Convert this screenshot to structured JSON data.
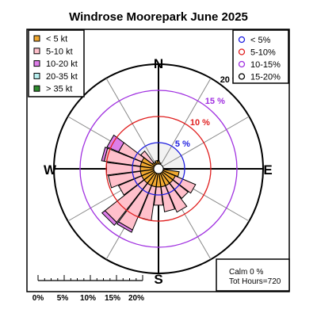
{
  "chart_data": {
    "type": "windrose",
    "title": "Windrose  Moorepark June 2025",
    "compass": {
      "north": "N",
      "east": "E",
      "south": "S",
      "west": "W"
    },
    "speed_bins": [
      {
        "label": "< 5  kt",
        "color": "#f0a830"
      },
      {
        "label": "5-10 kt",
        "color": "#ffc0cb"
      },
      {
        "label": "10-20 kt",
        "color": "#dd7ee8"
      },
      {
        "label": "20-35 kt",
        "color": "#b8f0f0"
      },
      {
        "label": "> 35 kt",
        "color": "#2e8b2e"
      }
    ],
    "rings": [
      {
        "value": 5,
        "label": "5 %",
        "color": "#1e1ee0"
      },
      {
        "value": 10,
        "label": "10 %",
        "color": "#e01e1e"
      },
      {
        "value": 15,
        "label": "15 %",
        "color": "#a030e0"
      },
      {
        "value": 20,
        "label": "20 %",
        "color": "#000000"
      }
    ],
    "ring_legend": [
      {
        "label": "< 5%",
        "color": "#1e1ee0"
      },
      {
        "label": "5-10%",
        "color": "#e01e1e"
      },
      {
        "label": "10-15%",
        "color": "#a030e0"
      },
      {
        "label": "15-20%",
        "color": "#000000"
      }
    ],
    "max_percent": 20,
    "sectors": [
      {
        "direction_deg": 0,
        "cumulative_percent": [
          1.5,
          1.5,
          1.5,
          1.5,
          1.5
        ]
      },
      {
        "direction_deg": 15,
        "cumulative_percent": [
          1.2,
          1.2,
          1.2,
          1.2,
          1.2
        ]
      },
      {
        "direction_deg": 30,
        "cumulative_percent": [
          0.8,
          0.8,
          0.8,
          0.8,
          0.8
        ]
      },
      {
        "direction_deg": 45,
        "cumulative_percent": [
          0.6,
          0.6,
          0.6,
          0.6,
          0.6
        ]
      },
      {
        "direction_deg": 60,
        "cumulative_percent": [
          0.6,
          0.6,
          0.6,
          0.6,
          0.6
        ]
      },
      {
        "direction_deg": 75,
        "cumulative_percent": [
          0.8,
          0.8,
          0.8,
          0.8,
          0.8
        ]
      },
      {
        "direction_deg": 90,
        "cumulative_percent": [
          1.0,
          1.0,
          1.0,
          1.0,
          1.0
        ]
      },
      {
        "direction_deg": 105,
        "cumulative_percent": [
          4.0,
          4.0,
          4.0,
          4.0,
          4.0
        ]
      },
      {
        "direction_deg": 120,
        "cumulative_percent": [
          3.5,
          7.7,
          7.7,
          7.7,
          7.7
        ]
      },
      {
        "direction_deg": 135,
        "cumulative_percent": [
          3.5,
          7.2,
          7.2,
          7.2,
          7.2
        ]
      },
      {
        "direction_deg": 150,
        "cumulative_percent": [
          3.5,
          9.0,
          9.0,
          9.0,
          9.0
        ]
      },
      {
        "direction_deg": 165,
        "cumulative_percent": [
          3.5,
          8.3,
          8.3,
          8.3,
          8.3
        ]
      },
      {
        "direction_deg": 180,
        "cumulative_percent": [
          3.5,
          7.0,
          7.0,
          7.0,
          7.0
        ]
      },
      {
        "direction_deg": 195,
        "cumulative_percent": [
          3.5,
          10.0,
          10.0,
          10.0,
          10.0
        ]
      },
      {
        "direction_deg": 210,
        "cumulative_percent": [
          3.5,
          12.7,
          13.2,
          13.2,
          13.2
        ]
      },
      {
        "direction_deg": 225,
        "cumulative_percent": [
          3.5,
          13.0,
          13.7,
          13.7,
          13.7
        ]
      },
      {
        "direction_deg": 240,
        "cumulative_percent": [
          3.5,
          8.3,
          8.3,
          8.3,
          8.3
        ]
      },
      {
        "direction_deg": 255,
        "cumulative_percent": [
          3.5,
          9.7,
          9.7,
          9.7,
          9.7
        ]
      },
      {
        "direction_deg": 270,
        "cumulative_percent": [
          3.5,
          10.0,
          10.0,
          10.0,
          10.0
        ]
      },
      {
        "direction_deg": 285,
        "cumulative_percent": [
          3.5,
          10.5,
          11.0,
          11.0,
          11.0
        ]
      },
      {
        "direction_deg": 300,
        "cumulative_percent": [
          3.5,
          8.3,
          10.7,
          10.7,
          10.7
        ]
      },
      {
        "direction_deg": 315,
        "cumulative_percent": [
          1.5,
          4.3,
          4.3,
          4.3,
          4.3
        ]
      },
      {
        "direction_deg": 330,
        "cumulative_percent": [
          1.3,
          1.3,
          1.3,
          1.3,
          1.3
        ]
      },
      {
        "direction_deg": 345,
        "cumulative_percent": [
          1.6,
          1.6,
          1.6,
          1.6,
          1.6
        ]
      }
    ],
    "scale_bar": {
      "tick_labels": [
        "0%",
        "5%",
        "10%",
        "15%",
        "20%"
      ]
    },
    "calm_label": "Calm 0 %",
    "hours_label": "Tot Hours=720"
  }
}
